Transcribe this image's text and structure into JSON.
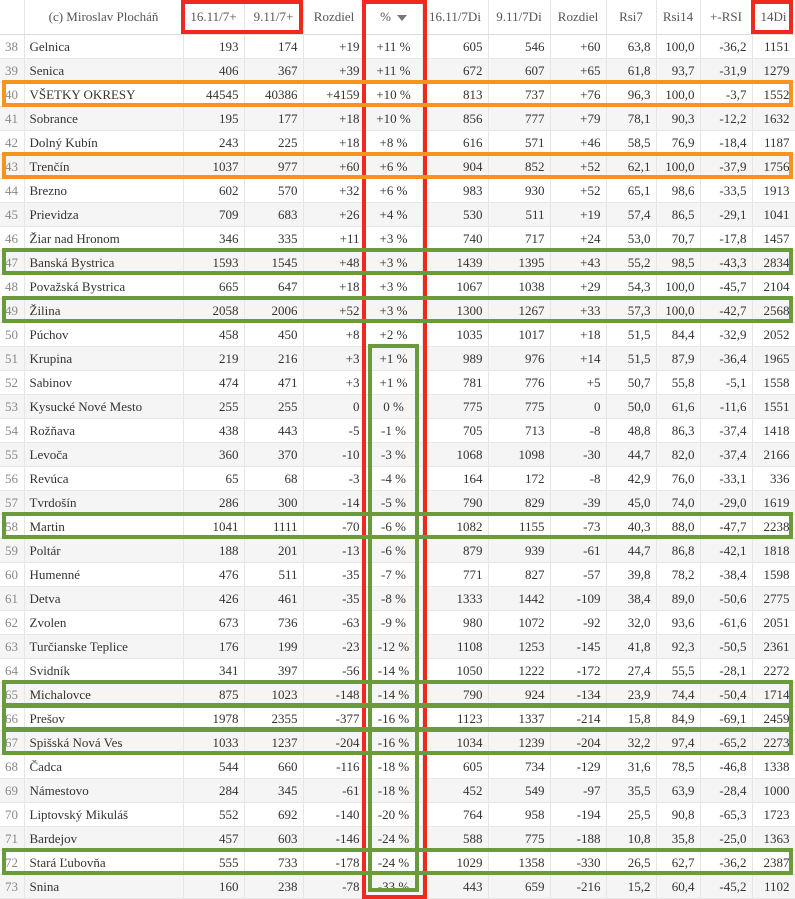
{
  "colors": {
    "red": "#f0281e",
    "orange": "#f7931e",
    "green": "#6a9a3a"
  },
  "header": {
    "index": "",
    "name": "(c) Miroslav Plocháň",
    "c1": "16.11/7+",
    "c2": "9.11/7+",
    "c3": "Rozdiel",
    "c4": "%",
    "c5": "16.11/7Di",
    "c6": "9.11/7Di",
    "c7": "Rozdiel",
    "c8": "Rsi7",
    "c9": "Rsi14",
    "c10": "+-RSI",
    "c11": "14Di",
    "sort_icon": "sort-desc-icon"
  },
  "rows": [
    {
      "i": "38",
      "name": "Gelnica",
      "v": [
        "193",
        "174",
        "+19",
        "+11 %",
        "605",
        "546",
        "+60",
        "63,8",
        "100,0",
        "-36,2",
        "1151"
      ]
    },
    {
      "i": "39",
      "name": "Senica",
      "v": [
        "406",
        "367",
        "+39",
        "+11 %",
        "672",
        "607",
        "+65",
        "61,8",
        "93,7",
        "-31,9",
        "1279"
      ]
    },
    {
      "i": "40",
      "name": "VŠETKY OKRESY",
      "v": [
        "44545",
        "40386",
        "+4159",
        "+10 %",
        "813",
        "737",
        "+76",
        "96,3",
        "100,0",
        "-3,7",
        "1552"
      ],
      "highlight": "orange"
    },
    {
      "i": "41",
      "name": "Sobrance",
      "v": [
        "195",
        "177",
        "+18",
        "+10 %",
        "856",
        "777",
        "+79",
        "78,1",
        "90,3",
        "-12,2",
        "1632"
      ]
    },
    {
      "i": "42",
      "name": "Dolný Kubín",
      "v": [
        "243",
        "225",
        "+18",
        "+8 %",
        "616",
        "571",
        "+46",
        "58,5",
        "76,9",
        "-18,4",
        "1187"
      ]
    },
    {
      "i": "43",
      "name": "Trenčín",
      "v": [
        "1037",
        "977",
        "+60",
        "+6 %",
        "904",
        "852",
        "+52",
        "62,1",
        "100,0",
        "-37,9",
        "1756"
      ],
      "highlight": "orange"
    },
    {
      "i": "44",
      "name": "Brezno",
      "v": [
        "602",
        "570",
        "+32",
        "+6 %",
        "983",
        "930",
        "+52",
        "65,1",
        "98,6",
        "-33,5",
        "1913"
      ]
    },
    {
      "i": "45",
      "name": "Prievidza",
      "v": [
        "709",
        "683",
        "+26",
        "+4 %",
        "530",
        "511",
        "+19",
        "57,4",
        "86,5",
        "-29,1",
        "1041"
      ]
    },
    {
      "i": "46",
      "name": "Žiar nad Hronom",
      "v": [
        "346",
        "335",
        "+11",
        "+3 %",
        "740",
        "717",
        "+24",
        "53,0",
        "70,7",
        "-17,8",
        "1457"
      ]
    },
    {
      "i": "47",
      "name": "Banská Bystrica",
      "v": [
        "1593",
        "1545",
        "+48",
        "+3 %",
        "1439",
        "1395",
        "+43",
        "55,2",
        "98,5",
        "-43,3",
        "2834"
      ],
      "highlight": "green"
    },
    {
      "i": "48",
      "name": "Považská Bystrica",
      "v": [
        "665",
        "647",
        "+18",
        "+3 %",
        "1067",
        "1038",
        "+29",
        "54,3",
        "100,0",
        "-45,7",
        "2104"
      ]
    },
    {
      "i": "49",
      "name": "Žilina",
      "v": [
        "2058",
        "2006",
        "+52",
        "+3 %",
        "1300",
        "1267",
        "+33",
        "57,3",
        "100,0",
        "-42,7",
        "2568"
      ],
      "highlight": "green"
    },
    {
      "i": "50",
      "name": "Púchov",
      "v": [
        "458",
        "450",
        "+8",
        "+2 %",
        "1035",
        "1017",
        "+18",
        "51,5",
        "84,4",
        "-32,9",
        "2052"
      ]
    },
    {
      "i": "51",
      "name": "Krupina",
      "v": [
        "219",
        "216",
        "+3",
        "+1 %",
        "989",
        "976",
        "+14",
        "51,5",
        "87,9",
        "-36,4",
        "1965"
      ]
    },
    {
      "i": "52",
      "name": "Sabinov",
      "v": [
        "474",
        "471",
        "+3",
        "+1 %",
        "781",
        "776",
        "+5",
        "50,7",
        "55,8",
        "-5,1",
        "1558"
      ]
    },
    {
      "i": "53",
      "name": "Kysucké Nové Mesto",
      "v": [
        "255",
        "255",
        "0",
        "0 %",
        "775",
        "775",
        "0",
        "50,0",
        "61,6",
        "-11,6",
        "1551"
      ]
    },
    {
      "i": "54",
      "name": "Rožňava",
      "v": [
        "438",
        "443",
        "-5",
        "-1 %",
        "705",
        "713",
        "-8",
        "48,8",
        "86,3",
        "-37,4",
        "1418"
      ]
    },
    {
      "i": "55",
      "name": "Levoča",
      "v": [
        "360",
        "370",
        "-10",
        "-3 %",
        "1068",
        "1098",
        "-30",
        "44,7",
        "82,0",
        "-37,4",
        "2166"
      ]
    },
    {
      "i": "56",
      "name": "Revúca",
      "v": [
        "65",
        "68",
        "-3",
        "-4 %",
        "164",
        "172",
        "-8",
        "42,9",
        "76,0",
        "-33,1",
        "336"
      ]
    },
    {
      "i": "57",
      "name": "Tvrdošín",
      "v": [
        "286",
        "300",
        "-14",
        "-5 %",
        "790",
        "829",
        "-39",
        "45,0",
        "74,0",
        "-29,0",
        "1619"
      ]
    },
    {
      "i": "58",
      "name": "Martin",
      "v": [
        "1041",
        "1111",
        "-70",
        "-6 %",
        "1082",
        "1155",
        "-73",
        "40,3",
        "88,0",
        "-47,7",
        "2238"
      ],
      "highlight": "green"
    },
    {
      "i": "59",
      "name": "Poltár",
      "v": [
        "188",
        "201",
        "-13",
        "-6 %",
        "879",
        "939",
        "-61",
        "44,7",
        "86,8",
        "-42,1",
        "1818"
      ]
    },
    {
      "i": "60",
      "name": "Humenné",
      "v": [
        "476",
        "511",
        "-35",
        "-7 %",
        "771",
        "827",
        "-57",
        "39,8",
        "78,2",
        "-38,4",
        "1598"
      ]
    },
    {
      "i": "61",
      "name": "Detva",
      "v": [
        "426",
        "461",
        "-35",
        "-8 %",
        "1333",
        "1442",
        "-109",
        "38,4",
        "89,0",
        "-50,6",
        "2775"
      ]
    },
    {
      "i": "62",
      "name": "Zvolen",
      "v": [
        "673",
        "736",
        "-63",
        "-9 %",
        "980",
        "1072",
        "-92",
        "32,0",
        "93,6",
        "-61,6",
        "2051"
      ]
    },
    {
      "i": "63",
      "name": "Turčianske Teplice",
      "v": [
        "176",
        "199",
        "-23",
        "-12 %",
        "1108",
        "1253",
        "-145",
        "41,8",
        "92,3",
        "-50,5",
        "2361"
      ]
    },
    {
      "i": "64",
      "name": "Svidník",
      "v": [
        "341",
        "397",
        "-56",
        "-14 %",
        "1050",
        "1222",
        "-172",
        "27,4",
        "55,5",
        "-28,1",
        "2272"
      ]
    },
    {
      "i": "65",
      "name": "Michalovce",
      "v": [
        "875",
        "1023",
        "-148",
        "-14 %",
        "790",
        "924",
        "-134",
        "23,9",
        "74,4",
        "-50,4",
        "1714"
      ],
      "highlight": "green"
    },
    {
      "i": "66",
      "name": "Prešov",
      "v": [
        "1978",
        "2355",
        "-377",
        "-16 %",
        "1123",
        "1337",
        "-214",
        "15,8",
        "84,9",
        "-69,1",
        "2459"
      ],
      "highlight": "green"
    },
    {
      "i": "67",
      "name": "Spišská Nová Ves",
      "v": [
        "1033",
        "1237",
        "-204",
        "-16 %",
        "1034",
        "1239",
        "-204",
        "32,2",
        "97,4",
        "-65,2",
        "2273"
      ],
      "highlight": "green"
    },
    {
      "i": "68",
      "name": "Čadca",
      "v": [
        "544",
        "660",
        "-116",
        "-18 %",
        "605",
        "734",
        "-129",
        "31,6",
        "78,5",
        "-46,8",
        "1338"
      ]
    },
    {
      "i": "69",
      "name": "Námestovo",
      "v": [
        "284",
        "345",
        "-61",
        "-18 %",
        "452",
        "549",
        "-97",
        "35,5",
        "63,9",
        "-28,4",
        "1000"
      ]
    },
    {
      "i": "70",
      "name": "Liptovský Mikuláš",
      "v": [
        "552",
        "692",
        "-140",
        "-20 %",
        "764",
        "958",
        "-194",
        "25,5",
        "90,8",
        "-65,3",
        "1723"
      ]
    },
    {
      "i": "71",
      "name": "Bardejov",
      "v": [
        "457",
        "603",
        "-146",
        "-24 %",
        "588",
        "775",
        "-188",
        "10,8",
        "35,8",
        "-25,0",
        "1363"
      ]
    },
    {
      "i": "72",
      "name": "Stará Ľubovňa",
      "v": [
        "555",
        "733",
        "-178",
        "-24 %",
        "1029",
        "1358",
        "-330",
        "26,5",
        "62,7",
        "-36,2",
        "2387"
      ],
      "highlight": "green"
    },
    {
      "i": "73",
      "name": "Snina",
      "v": [
        "160",
        "238",
        "-78",
        "-33 %",
        "443",
        "659",
        "-216",
        "15,2",
        "60,4",
        "-45,2",
        "1102"
      ]
    }
  ]
}
